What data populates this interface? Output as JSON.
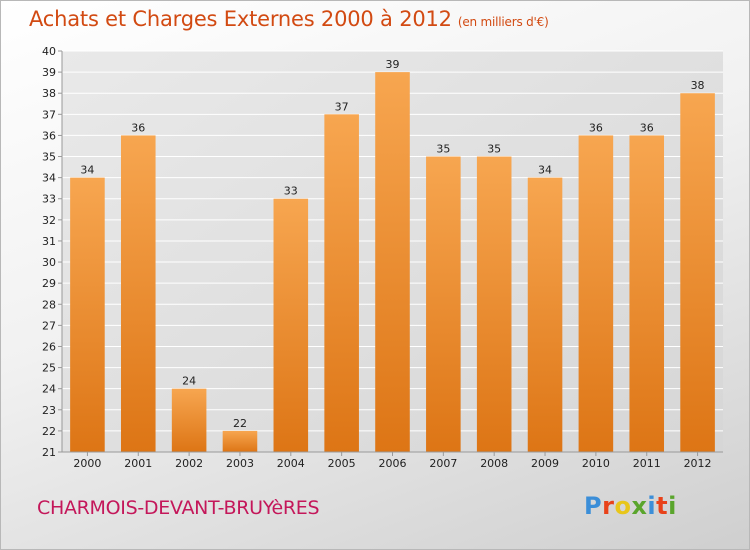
{
  "header": {
    "title": "Achats et Charges Externes 2000 à 2012",
    "subtitle": "(en milliers d'€)"
  },
  "footer": {
    "commune": "CHARMOIS-DEVANT-BRUYèRES",
    "logo_letters": [
      "P",
      "r",
      "o",
      "x",
      "i",
      "t",
      "i"
    ],
    "logo_colors": [
      "#3b8ed8",
      "#e8421a",
      "#e8c61a",
      "#5aa52c",
      "#3b8ed8",
      "#e8421a",
      "#5aa52c"
    ]
  },
  "colors": {
    "bar_top": "#f7a650",
    "bar_bottom": "#dd7515",
    "grid": "#ffffff",
    "axis": "#999999"
  },
  "chart_data": {
    "type": "bar",
    "title": "Achats et Charges Externes 2000 à 2012",
    "subtitle": "(en milliers d'€)",
    "xlabel": "",
    "ylabel": "",
    "categories": [
      "2000",
      "2001",
      "2002",
      "2003",
      "2004",
      "2005",
      "2006",
      "2007",
      "2008",
      "2009",
      "2010",
      "2011",
      "2012"
    ],
    "values": [
      34,
      36,
      24,
      22,
      33,
      37,
      39,
      35,
      35,
      34,
      36,
      36,
      38
    ],
    "ylim": [
      21,
      40
    ],
    "yticks": [
      21,
      22,
      23,
      24,
      25,
      26,
      27,
      28,
      29,
      30,
      31,
      32,
      33,
      34,
      35,
      36,
      37,
      38,
      39,
      40
    ],
    "grid": true,
    "legend": "none"
  }
}
